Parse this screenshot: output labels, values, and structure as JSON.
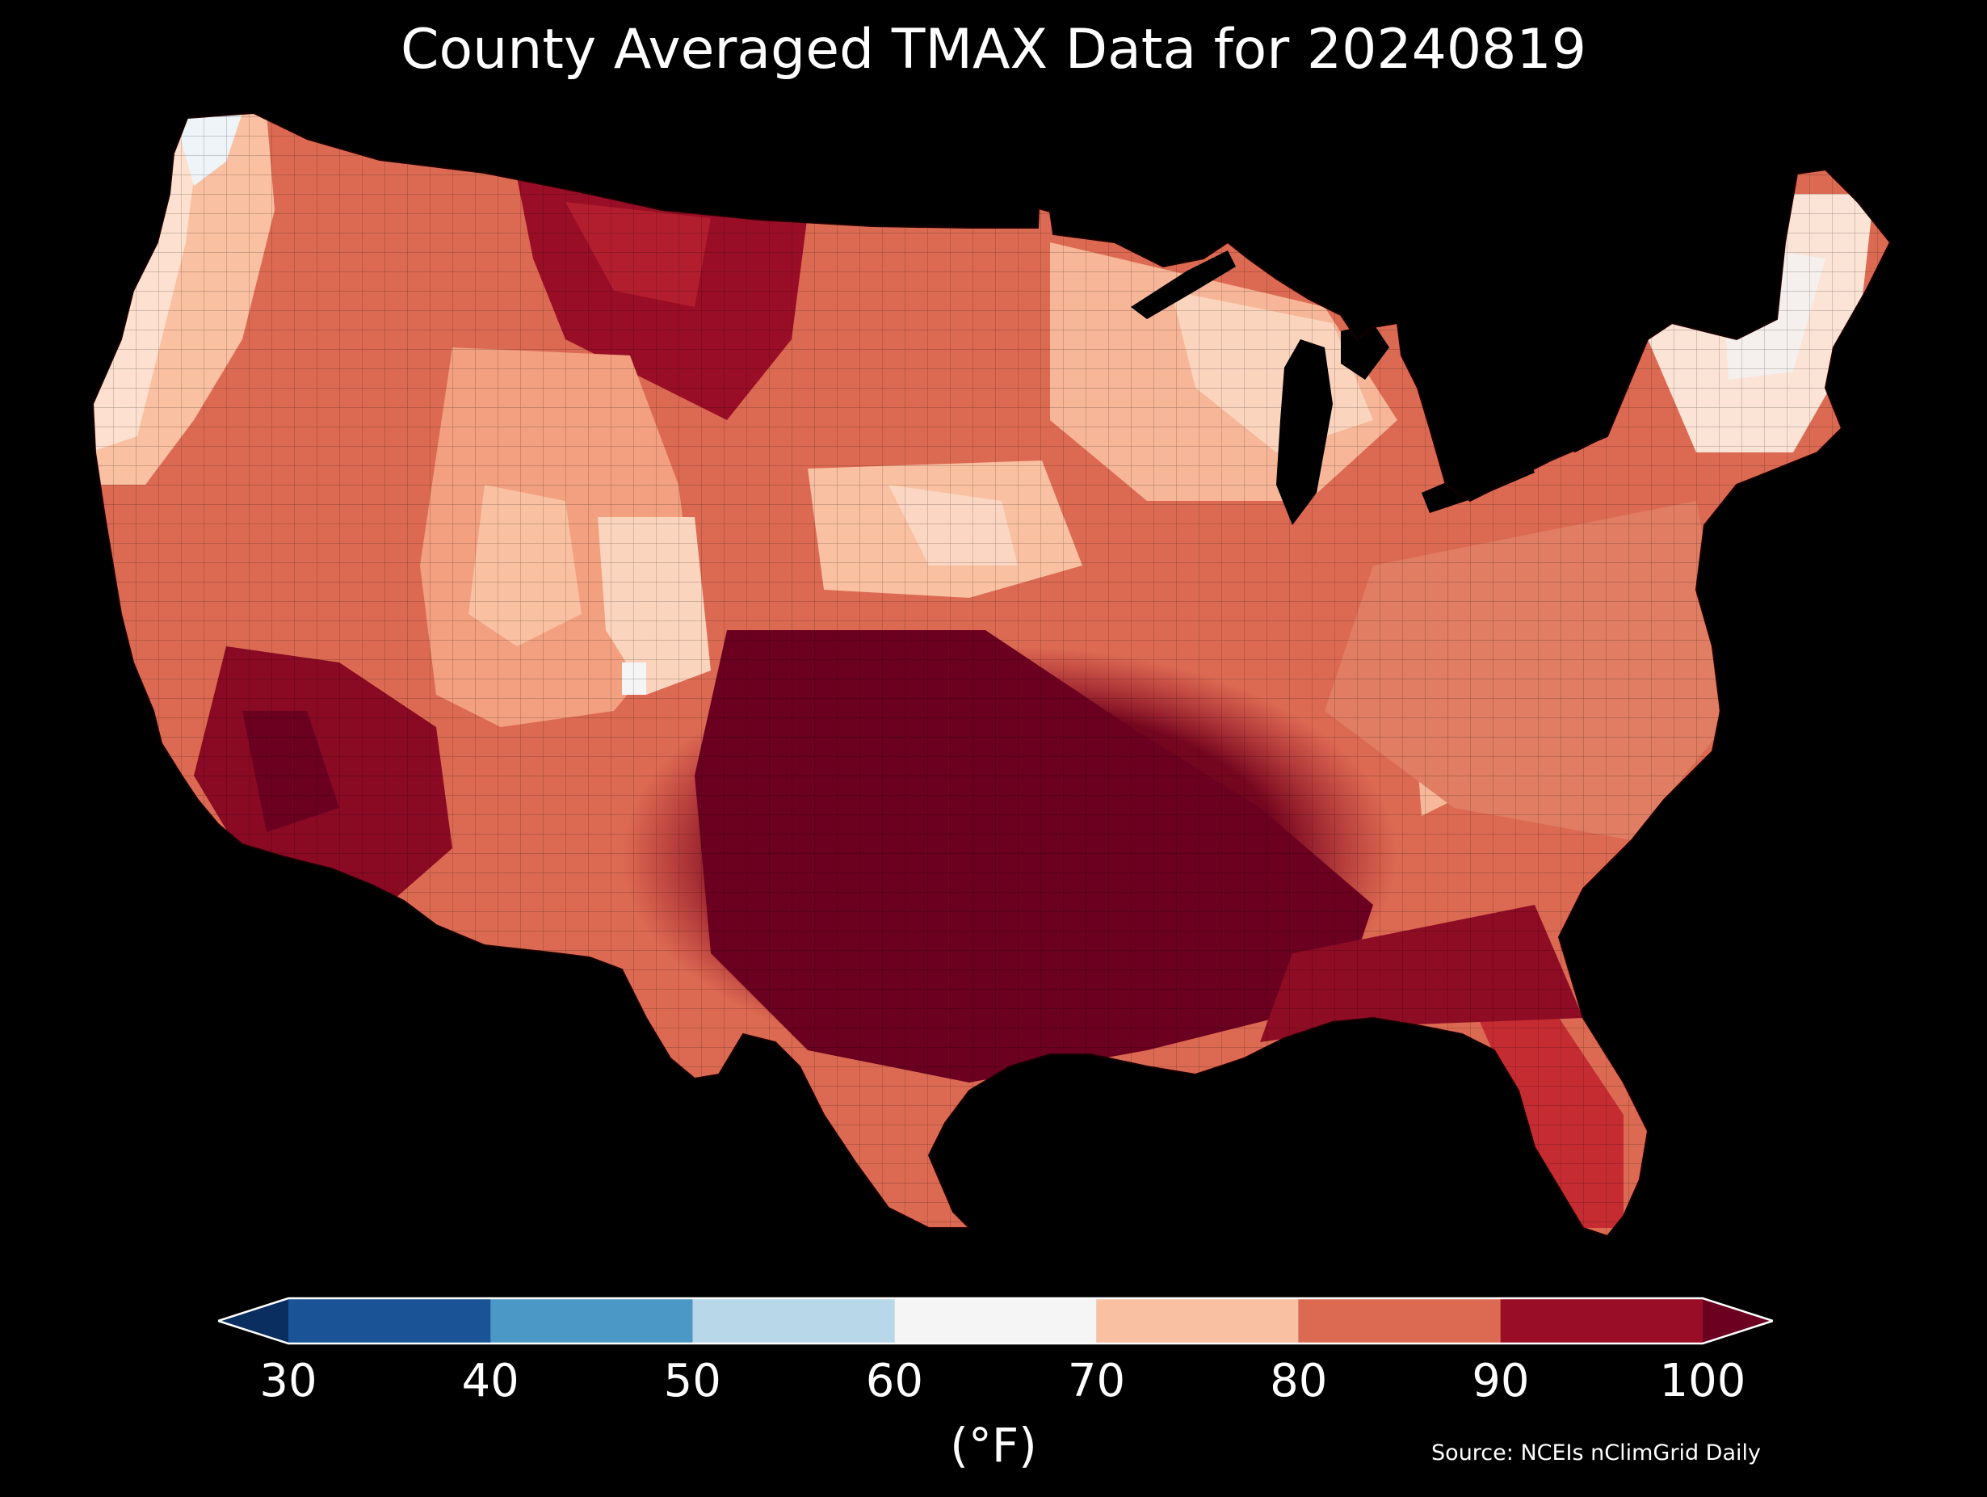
{
  "title": "County Averaged TMAX Data for 20240819",
  "colorbar": {
    "ticks": [
      "30",
      "40",
      "50",
      "60",
      "70",
      "80",
      "90",
      "100"
    ],
    "units": "(°F)",
    "bins": [
      {
        "range": [
          30,
          40
        ],
        "color": "#1a5396"
      },
      {
        "range": [
          40,
          50
        ],
        "color": "#4b98c6"
      },
      {
        "range": [
          50,
          60
        ],
        "color": "#b8d8ea"
      },
      {
        "range": [
          60,
          70
        ],
        "color": "#f5f5f5"
      },
      {
        "range": [
          70,
          80
        ],
        "color": "#f9c0a1"
      },
      {
        "range": [
          80,
          90
        ],
        "color": "#dc6a52"
      },
      {
        "range": [
          90,
          100
        ],
        "color": "#990e26"
      }
    ],
    "under_color": "#0b2e60",
    "over_color": "#6b0020"
  },
  "source": "Source: NCEIs nClimGrid Daily",
  "map_colors": {
    "bin_60_70": "#f5f5f5",
    "bin_70_80": "#f9c0a1",
    "bin_80_90": "#dc6a52",
    "bin_90_100": "#990e26",
    "over_100": "#6b0020",
    "cool_50_60": "#d4e6f1"
  }
}
